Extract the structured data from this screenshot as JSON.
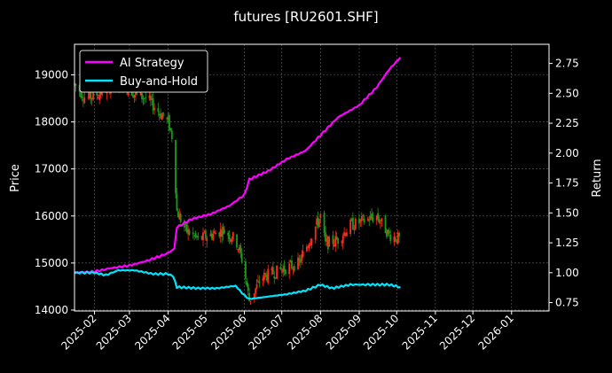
{
  "chart_data": {
    "type": "line",
    "title": "futures [RU2601.SHF]",
    "ylabel_left": "Price",
    "ylabel_right": "Return",
    "x_ticks": [
      "2025-02",
      "2025-03",
      "2025-04",
      "2025-05",
      "2025-06",
      "2025-07",
      "2025-08",
      "2025-09",
      "2025-10",
      "2025-11",
      "2025-12",
      "2026-01"
    ],
    "y_left_ticks": [
      "14000",
      "15000",
      "16000",
      "17000",
      "18000",
      "19000"
    ],
    "y_right_ticks": [
      "0.75",
      "1.00",
      "1.25",
      "1.50",
      "1.75",
      "2.00",
      "2.25",
      "2.50",
      "2.75"
    ],
    "y_left_range": [
      13980,
      19650
    ],
    "y_right_range": [
      0.68,
      2.91
    ],
    "x_range": [
      "2025-01-16",
      "2026-01-31"
    ],
    "grid": true,
    "legend_position": "top-left",
    "colors": {
      "ai_strategy": "#ff00ff",
      "buy_and_hold": "#00e5ff",
      "candle_up": "#ff2a1a",
      "candle_down": "#1a9c1a",
      "background": "#000000",
      "grid": "#666666"
    },
    "series": [
      {
        "name": "AI Strategy",
        "axis": "right",
        "points": [
          [
            "2025-01-16",
            1.0
          ],
          [
            "2025-02-01",
            1.01
          ],
          [
            "2025-02-15",
            1.04
          ],
          [
            "2025-03-01",
            1.06
          ],
          [
            "2025-03-15",
            1.1
          ],
          [
            "2025-03-31",
            1.16
          ],
          [
            "2025-04-06",
            1.2
          ],
          [
            "2025-04-08",
            1.38
          ],
          [
            "2025-04-20",
            1.45
          ],
          [
            "2025-05-05",
            1.49
          ],
          [
            "2025-05-20",
            1.56
          ],
          [
            "2025-06-01",
            1.65
          ],
          [
            "2025-06-05",
            1.78
          ],
          [
            "2025-06-20",
            1.85
          ],
          [
            "2025-07-05",
            1.95
          ],
          [
            "2025-07-20",
            2.02
          ],
          [
            "2025-08-01",
            2.15
          ],
          [
            "2025-08-15",
            2.3
          ],
          [
            "2025-09-01",
            2.4
          ],
          [
            "2025-09-15",
            2.55
          ],
          [
            "2025-09-25",
            2.7
          ],
          [
            "2025-10-04",
            2.8
          ]
        ]
      },
      {
        "name": "Buy-and-Hold",
        "axis": "right",
        "points": [
          [
            "2025-01-16",
            1.0
          ],
          [
            "2025-02-01",
            1.0
          ],
          [
            "2025-02-10",
            0.98
          ],
          [
            "2025-02-20",
            1.02
          ],
          [
            "2025-03-05",
            1.02
          ],
          [
            "2025-03-20",
            0.99
          ],
          [
            "2025-04-01",
            0.99
          ],
          [
            "2025-04-05",
            0.97
          ],
          [
            "2025-04-08",
            0.88
          ],
          [
            "2025-04-25",
            0.87
          ],
          [
            "2025-05-10",
            0.87
          ],
          [
            "2025-05-25",
            0.89
          ],
          [
            "2025-06-01",
            0.81
          ],
          [
            "2025-06-05",
            0.78
          ],
          [
            "2025-06-20",
            0.8
          ],
          [
            "2025-07-05",
            0.82
          ],
          [
            "2025-07-20",
            0.85
          ],
          [
            "2025-08-01",
            0.9
          ],
          [
            "2025-08-10",
            0.87
          ],
          [
            "2025-08-25",
            0.9
          ],
          [
            "2025-09-10",
            0.9
          ],
          [
            "2025-09-25",
            0.9
          ],
          [
            "2025-10-04",
            0.88
          ]
        ]
      }
    ],
    "candles_close_path": [
      [
        "2025-01-16",
        18800
      ],
      [
        "2025-01-25",
        18500
      ],
      [
        "2025-02-05",
        18600
      ],
      [
        "2025-02-15",
        18800
      ],
      [
        "2025-02-25",
        18800
      ],
      [
        "2025-03-05",
        18600
      ],
      [
        "2025-03-15",
        18500
      ],
      [
        "2025-03-25",
        18200
      ],
      [
        "2025-04-01",
        18000
      ],
      [
        "2025-04-05",
        17600
      ],
      [
        "2025-04-08",
        16100
      ],
      [
        "2025-04-15",
        15700
      ],
      [
        "2025-04-25",
        15500
      ],
      [
        "2025-05-05",
        15600
      ],
      [
        "2025-05-15",
        15700
      ],
      [
        "2025-05-25",
        15500
      ],
      [
        "2025-05-31",
        15000
      ],
      [
        "2025-06-05",
        14200
      ],
      [
        "2025-06-15",
        14700
      ],
      [
        "2025-06-25",
        14800
      ],
      [
        "2025-07-05",
        14900
      ],
      [
        "2025-07-15",
        15000
      ],
      [
        "2025-07-25",
        15600
      ],
      [
        "2025-08-01",
        16000
      ],
      [
        "2025-08-05",
        15400
      ],
      [
        "2025-08-15",
        15500
      ],
      [
        "2025-08-25",
        15800
      ],
      [
        "2025-09-05",
        15900
      ],
      [
        "2025-09-15",
        16000
      ],
      [
        "2025-09-25",
        15600
      ],
      [
        "2025-10-04",
        15500
      ]
    ]
  }
}
